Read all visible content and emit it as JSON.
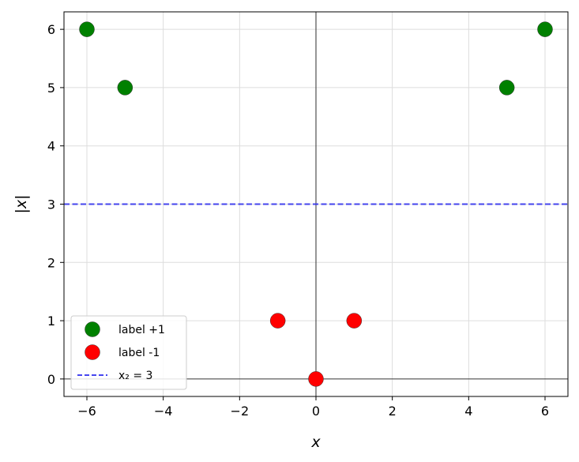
{
  "chart_data": {
    "type": "scatter",
    "xlabel": "x",
    "ylabel": "|x|",
    "xlim": [
      -6.6,
      6.6
    ],
    "ylim": [
      -0.3,
      6.3
    ],
    "xticks": [
      -6,
      -4,
      -2,
      0,
      2,
      4,
      6
    ],
    "yticks": [
      0,
      1,
      2,
      3,
      4,
      5,
      6
    ],
    "xtick_labels": [
      "−6",
      "−4",
      "−2",
      "0",
      "2",
      "4",
      "6"
    ],
    "ytick_labels": [
      "0",
      "1",
      "2",
      "3",
      "4",
      "5",
      "6"
    ],
    "grid": true,
    "legend_position": "lower-left",
    "series": [
      {
        "name": "label +1",
        "color": "#008000",
        "points": [
          {
            "x": -6,
            "y": 6
          },
          {
            "x": -5,
            "y": 5
          },
          {
            "x": 5,
            "y": 5
          },
          {
            "x": 6,
            "y": 6
          }
        ]
      },
      {
        "name": "label -1",
        "color": "#ff0000",
        "points": [
          {
            "x": -1,
            "y": 1
          },
          {
            "x": 0,
            "y": 0
          },
          {
            "x": 1,
            "y": 1
          }
        ]
      }
    ],
    "reference_lines": [
      {
        "name": "x₂ = 3",
        "orientation": "horizontal",
        "y": 3,
        "color": "#3333ee",
        "style": "dashed"
      }
    ],
    "zero_lines": {
      "x": 0,
      "y": 0
    }
  }
}
